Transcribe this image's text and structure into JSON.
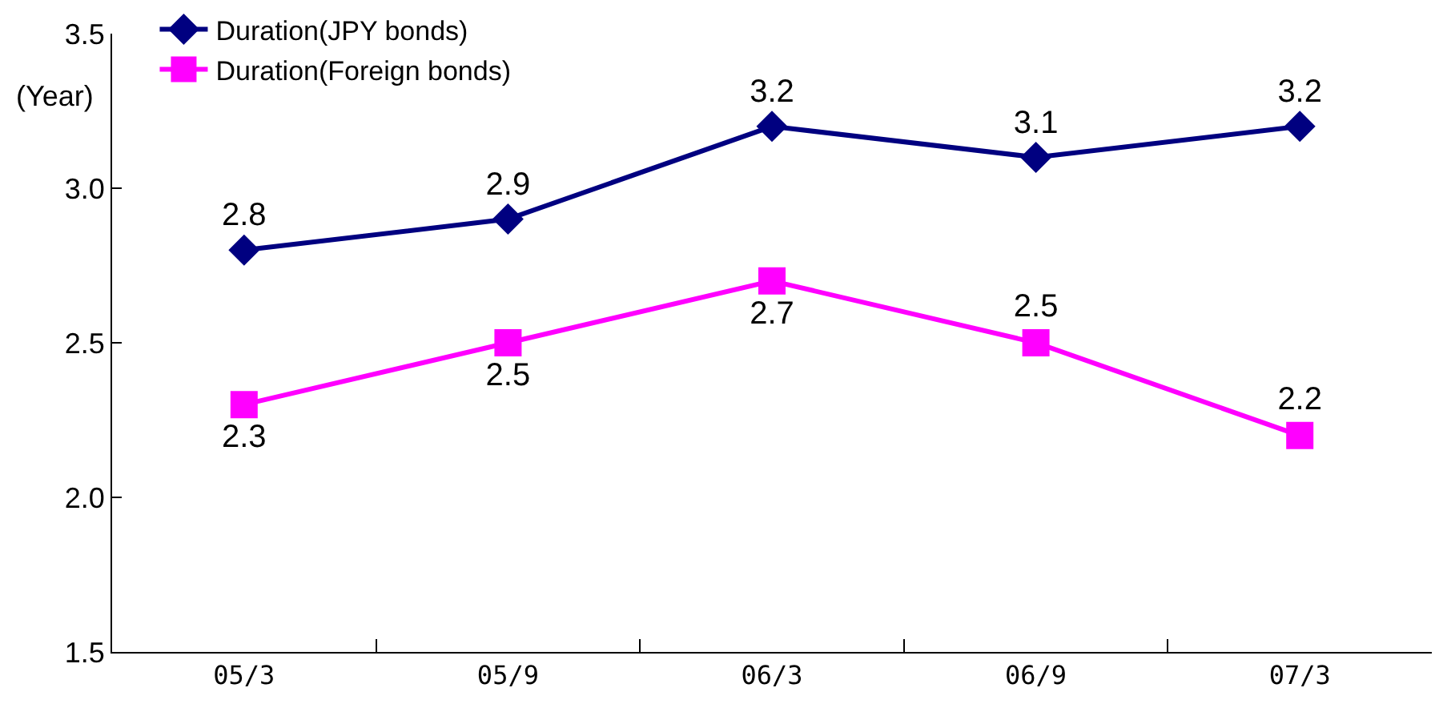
{
  "chart_data": {
    "type": "line",
    "ylabel": "(Year)",
    "categories": [
      "05/3",
      "05/9",
      "06/3",
      "06/9",
      "07/3"
    ],
    "series": [
      {
        "name": "Duration(JPY bonds)",
        "color": "#000080",
        "marker": "diamond",
        "values": [
          2.8,
          2.9,
          3.2,
          3.1,
          3.2
        ]
      },
      {
        "name": "Duration(Foreign bonds)",
        "color": "#ff00ff",
        "marker": "square",
        "values": [
          2.3,
          2.5,
          2.7,
          2.5,
          2.2
        ]
      }
    ],
    "ylim": [
      1.5,
      3.5
    ],
    "yticks": [
      {
        "value": 1.5,
        "label": "1.5"
      },
      {
        "value": 2,
        "label": "2.0"
      },
      {
        "value": 2.5,
        "label": "2.5"
      },
      {
        "value": 3,
        "label": "3.0"
      },
      {
        "value": 3.5,
        "label": "3.5"
      }
    ],
    "data_labels": true,
    "legend": "top left",
    "grid": false,
    "line_style": "solid"
  }
}
